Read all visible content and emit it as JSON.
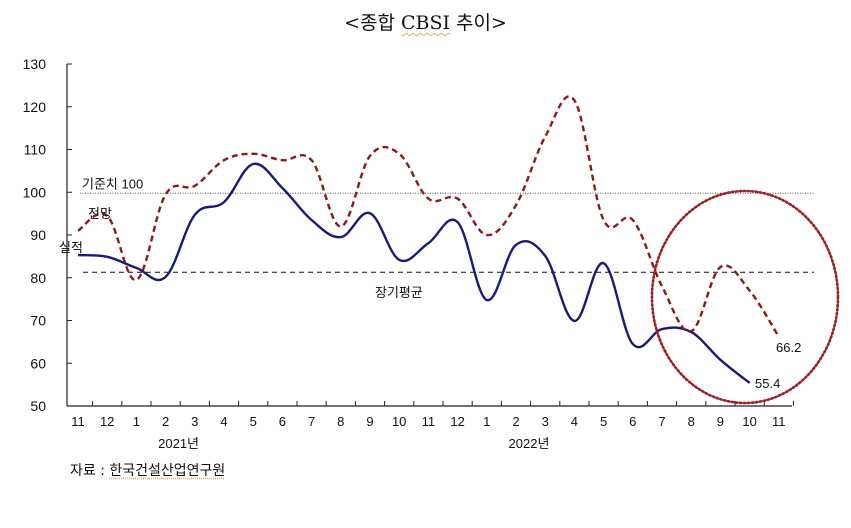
{
  "title": {
    "prefix": "<종합 ",
    "underlined": "CBSI",
    "suffix": " 추이>"
  },
  "source": {
    "label": "자료 : ",
    "org": "한국건설산업연구원"
  },
  "labels": {
    "reference_line": "기준치 100",
    "long_term_avg": "장기평균",
    "forecast_series": "전망",
    "actual_series": "실적",
    "actual_last_value": "55.4",
    "forecast_last_value": "66.2",
    "year_2021": "2021년",
    "year_2022": "2022년"
  },
  "colors": {
    "actual": "#1a1a7a",
    "forecast": "#8b1a1a",
    "highlight_circle": "#9b2222",
    "reference": "#555555",
    "axis": "#222222"
  },
  "chart_data": {
    "type": "line",
    "title": "<종합 CBSI 추이>",
    "xlabel": "",
    "ylabel": "",
    "ylim": [
      50,
      130
    ],
    "yticks": [
      50,
      60,
      70,
      80,
      90,
      100,
      110,
      120,
      130
    ],
    "categories": [
      "11",
      "12",
      "1",
      "2",
      "3",
      "4",
      "5",
      "6",
      "7",
      "8",
      "9",
      "10",
      "11",
      "12",
      "1",
      "2",
      "3",
      "4",
      "5",
      "6",
      "7",
      "8",
      "9",
      "10",
      "11"
    ],
    "year_groups": [
      {
        "label": "2021년",
        "center_category_index": 3
      },
      {
        "label": "2022년",
        "center_category_index": 15
      }
    ],
    "series": [
      {
        "name": "실적",
        "style": "solid",
        "color": "#1a1a7a",
        "values": [
          85.3,
          84.9,
          82.3,
          80.2,
          94.7,
          97.7,
          106.6,
          101.0,
          93.5,
          89.5,
          95.1,
          84.2,
          88.1,
          93.0,
          74.8,
          87.7,
          85.1,
          69.9,
          83.4,
          64.5,
          68.0,
          67.3,
          60.8,
          55.4,
          null
        ]
      },
      {
        "name": "전망",
        "style": "dashed",
        "color": "#8b1a1a",
        "values": [
          91.0,
          94.5,
          79.5,
          99.5,
          101.5,
          107.5,
          109.0,
          107.5,
          107.5,
          92.0,
          108.5,
          109.0,
          98.5,
          98.5,
          90.0,
          97.0,
          113.0,
          121.5,
          93.5,
          93.5,
          78.0,
          67.5,
          82.5,
          77.0,
          66.2
        ]
      }
    ],
    "reference_lines": [
      {
        "name": "기준치 100",
        "value": 100,
        "style": "dotted"
      },
      {
        "name": "장기평균",
        "value": 81.3,
        "style": "dashed"
      }
    ],
    "annotations": [
      {
        "text": "55.4",
        "series": "실적",
        "category_index": 23
      },
      {
        "text": "66.2",
        "series": "전망",
        "category_index": 24
      },
      {
        "type": "ellipse",
        "style": "dotted",
        "covers_category_indices": [
          20,
          24
        ],
        "note": "highlight of recent months"
      }
    ],
    "grid": false,
    "legend": "inline labels"
  }
}
